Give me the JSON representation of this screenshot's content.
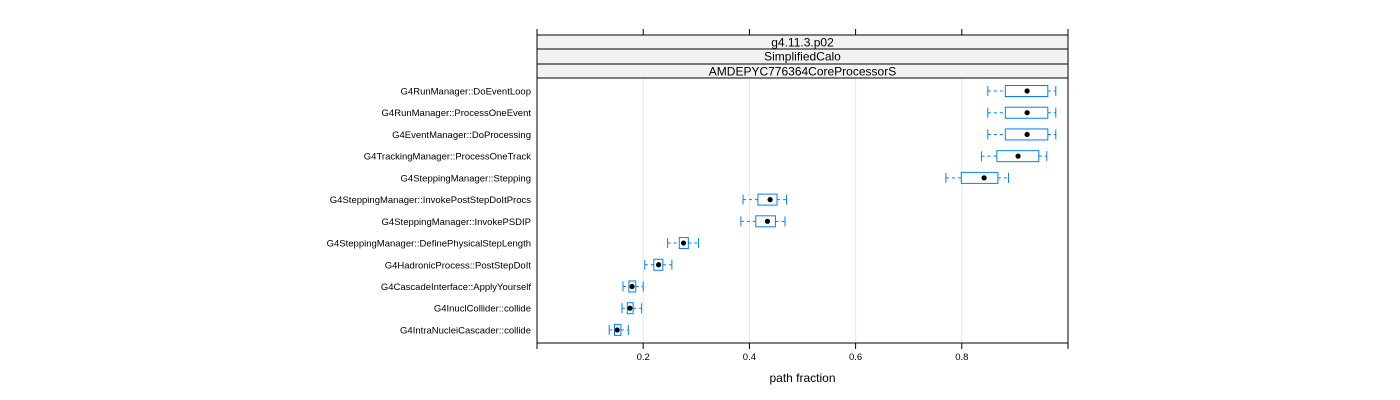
{
  "colors": {
    "box": "#0080ff",
    "median": "#000000",
    "grid": "#e6e6e6",
    "strip": "#f2f2f2"
  },
  "chart_data": {
    "type": "boxplot",
    "title": "",
    "strips": [
      "g4.11.3.p02",
      "SimplifiedCalo",
      "AMDEPYC776364CoreProcessorS"
    ],
    "xlabel": "path fraction",
    "ylabel": "",
    "xlim": [
      0.0,
      1.0
    ],
    "xticks": [
      0.2,
      0.4,
      0.6,
      0.8
    ],
    "xtick_labels": [
      "0.2",
      "0.4",
      "0.6",
      "0.8"
    ],
    "grid": true,
    "categories": [
      "G4RunManager::DoEventLoop",
      "G4RunManager::ProcessOneEvent",
      "G4EventManager::DoProcessing",
      "G4TrackingManager::ProcessOneTrack",
      "G4SteppingManager::Stepping",
      "G4SteppingManager::InvokePostStepDoItProcs",
      "G4SteppingManager::InvokePSDIP",
      "G4SteppingManager::DefinePhysicalStepLength",
      "G4HadronicProcess::PostStepDoIt",
      "G4CascadeInterface::ApplyYourself",
      "G4InuclCollider::collide",
      "G4IntraNucleiCascader::collide"
    ],
    "boxes": [
      {
        "whisker_low": 0.849,
        "q1": 0.882,
        "median": 0.923,
        "q3": 0.962,
        "whisker_high": 0.977
      },
      {
        "whisker_low": 0.849,
        "q1": 0.882,
        "median": 0.923,
        "q3": 0.962,
        "whisker_high": 0.977
      },
      {
        "whisker_low": 0.849,
        "q1": 0.882,
        "median": 0.923,
        "q3": 0.962,
        "whisker_high": 0.977
      },
      {
        "whisker_low": 0.837,
        "q1": 0.866,
        "median": 0.906,
        "q3": 0.945,
        "whisker_high": 0.96
      },
      {
        "whisker_low": 0.77,
        "q1": 0.799,
        "median": 0.842,
        "q3": 0.868,
        "whisker_high": 0.888
      },
      {
        "whisker_low": 0.388,
        "q1": 0.416,
        "median": 0.439,
        "q3": 0.452,
        "whisker_high": 0.47
      },
      {
        "whisker_low": 0.384,
        "q1": 0.412,
        "median": 0.434,
        "q3": 0.449,
        "whisker_high": 0.467
      },
      {
        "whisker_low": 0.246,
        "q1": 0.268,
        "median": 0.276,
        "q3": 0.285,
        "whisker_high": 0.304
      },
      {
        "whisker_low": 0.203,
        "q1": 0.22,
        "median": 0.229,
        "q3": 0.237,
        "whisker_high": 0.254
      },
      {
        "whisker_low": 0.162,
        "q1": 0.173,
        "median": 0.179,
        "q3": 0.186,
        "whisker_high": 0.2
      },
      {
        "whisker_low": 0.16,
        "q1": 0.17,
        "median": 0.175,
        "q3": 0.181,
        "whisker_high": 0.197
      },
      {
        "whisker_low": 0.136,
        "q1": 0.146,
        "median": 0.151,
        "q3": 0.158,
        "whisker_high": 0.172
      }
    ]
  }
}
